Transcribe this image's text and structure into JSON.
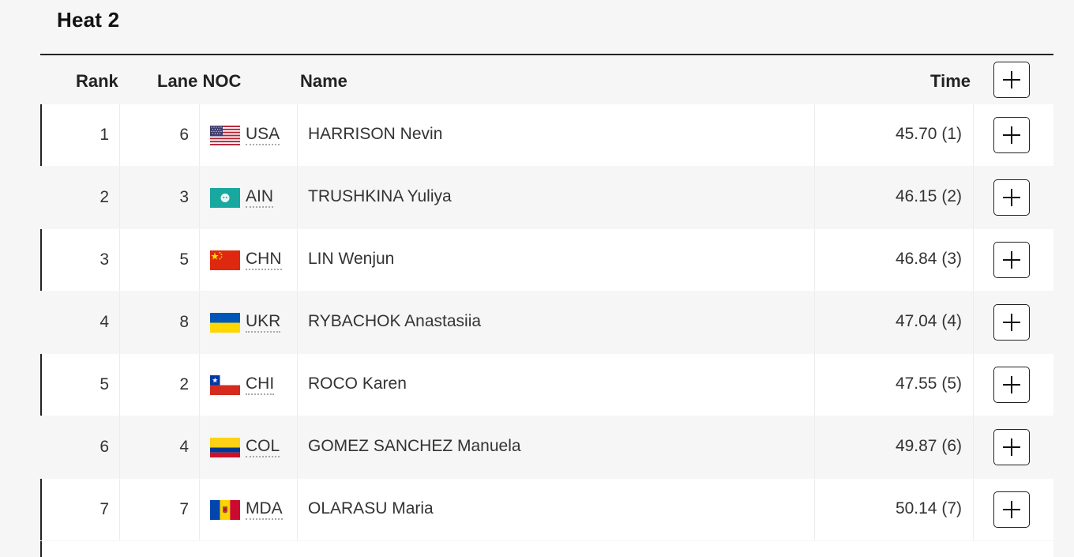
{
  "heat": {
    "title": "Heat 2"
  },
  "table": {
    "headers": {
      "rank": "Rank",
      "lane_noc": "Lane NOC",
      "name": "Name",
      "time": "Time"
    },
    "rows": [
      {
        "rank": "1",
        "lane": "6",
        "noc": "USA",
        "flag": "usa-flag-icon",
        "name": "HARRISON Nevin",
        "time": "45.70 (1)"
      },
      {
        "rank": "2",
        "lane": "3",
        "noc": "AIN",
        "flag": "ain-flag-icon",
        "name": "TRUSHKINA Yuliya",
        "time": "46.15 (2)"
      },
      {
        "rank": "3",
        "lane": "5",
        "noc": "CHN",
        "flag": "chn-flag-icon",
        "name": "LIN Wenjun",
        "time": "46.84 (3)"
      },
      {
        "rank": "4",
        "lane": "8",
        "noc": "UKR",
        "flag": "ukr-flag-icon",
        "name": "RYBACHOK Anastasiia",
        "time": "47.04 (4)"
      },
      {
        "rank": "5",
        "lane": "2",
        "noc": "CHI",
        "flag": "chi-flag-icon",
        "name": "ROCO Karen",
        "time": "47.55 (5)"
      },
      {
        "rank": "6",
        "lane": "4",
        "noc": "COL",
        "flag": "col-flag-icon",
        "name": "GOMEZ SANCHEZ Manuela",
        "time": "49.87 (6)"
      },
      {
        "rank": "7",
        "lane": "7",
        "noc": "MDA",
        "flag": "mda-flag-icon",
        "name": "OLARASU Maria",
        "time": "50.14 (7)"
      }
    ]
  },
  "icons": {
    "expand": "plus-icon"
  }
}
